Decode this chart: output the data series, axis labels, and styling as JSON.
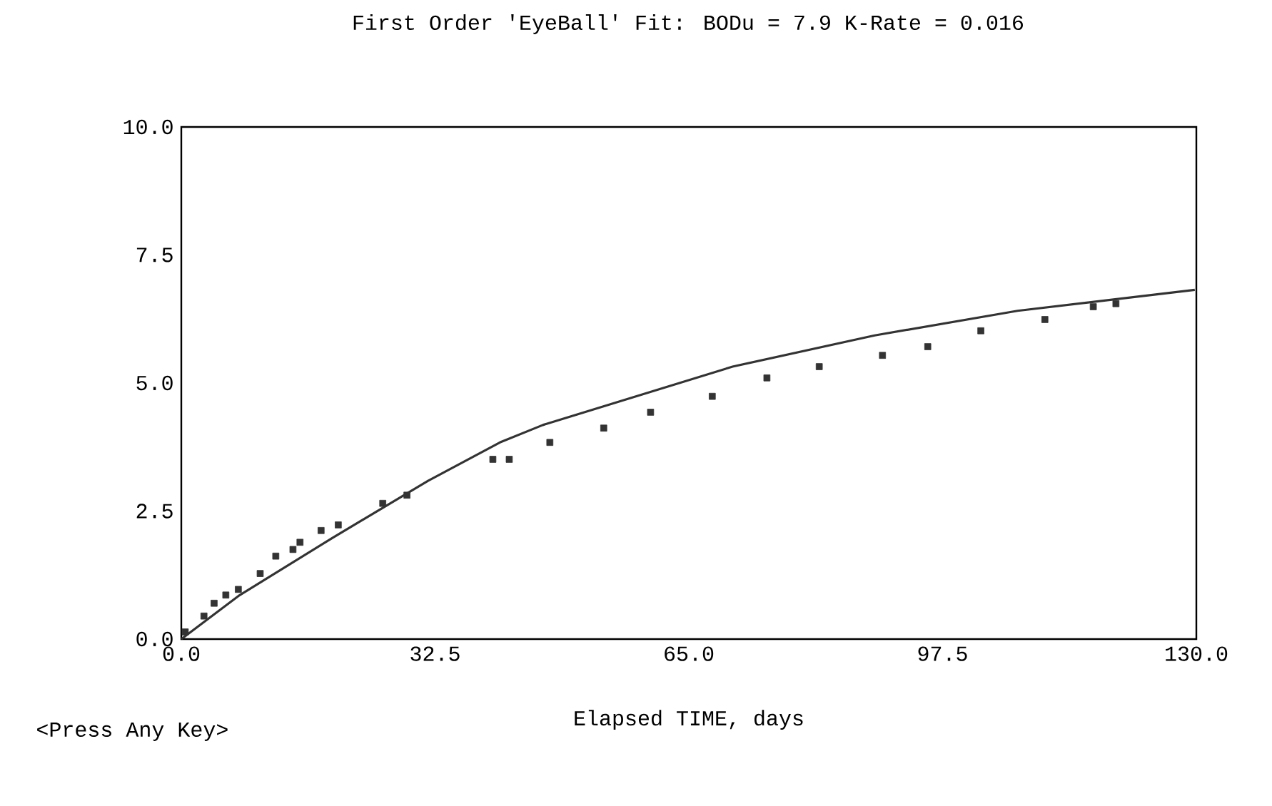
{
  "chart_data": {
    "type": "scatter",
    "title": "First Order 'EyeBall' Fit:   BODu =  7.9     K-Rate = 0.016",
    "xlabel": "Elapsed TIME, days",
    "annotations": [
      "<Press Any Key>"
    ],
    "xlim": [
      0,
      130
    ],
    "ylim": [
      0,
      10
    ],
    "xticks": [
      {
        "value": 0,
        "label": "0.0"
      },
      {
        "value": 32.5,
        "label": "32.5"
      },
      {
        "value": 65,
        "label": "65.0"
      },
      {
        "value": 97.5,
        "label": "97.5"
      },
      {
        "value": 130,
        "label": "130.0"
      }
    ],
    "yticks": [
      {
        "value": 0,
        "label": "0.0"
      },
      {
        "value": 2.5,
        "label": "2.5"
      },
      {
        "value": 5,
        "label": "5.0"
      },
      {
        "value": 7.5,
        "label": "7.5"
      },
      {
        "value": 10,
        "label": "10.0"
      }
    ],
    "series": [
      {
        "marker": "square",
        "color": "#333333",
        "x": [
          0.5,
          2.9,
          4.2,
          5.7,
          7.3,
          10.1,
          12.1,
          14.3,
          15.2,
          17.9,
          20.1,
          25.8,
          28.9,
          39.9,
          42.0,
          47.2,
          54.1,
          60.1,
          68.0,
          75.0,
          81.7,
          89.8,
          95.6,
          102.4,
          110.6,
          116.8,
          119.7
        ],
        "values": [
          0.14,
          0.45,
          0.7,
          0.86,
          0.97,
          1.28,
          1.62,
          1.75,
          1.89,
          2.12,
          2.23,
          2.65,
          2.81,
          3.51,
          3.51,
          3.84,
          4.12,
          4.43,
          4.74,
          5.1,
          5.32,
          5.54,
          5.71,
          6.02,
          6.24,
          6.49,
          6.55
        ]
      },
      {
        "type": "line",
        "marker": "none",
        "color": "#333333",
        "x": [
          0,
          7.3,
          19.4,
          31.6,
          40.8,
          46.3,
          49.9,
          70.6,
          88.8,
          107.1,
          129.8
        ],
        "values": [
          0,
          0.84,
          1.98,
          3.09,
          3.84,
          4.18,
          4.35,
          5.32,
          5.93,
          6.41,
          6.82
        ]
      }
    ]
  }
}
